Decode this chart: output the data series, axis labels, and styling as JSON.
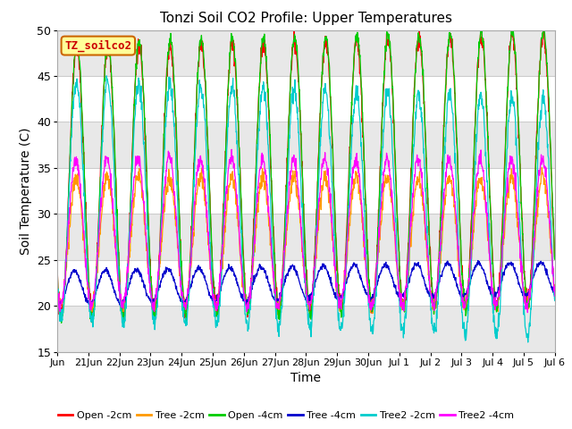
{
  "title": "Tonzi Soil CO2 Profile: Upper Temperatures",
  "ylabel": "Soil Temperature (C)",
  "xlabel": "Time",
  "ylim": [
    15,
    50
  ],
  "yticks": [
    15,
    20,
    25,
    30,
    35,
    40,
    45,
    50
  ],
  "legend_label": "TZ_soilco2",
  "legend_box_color": "#ffff99",
  "legend_box_edge": "#cc6600",
  "series": [
    {
      "label": "Open -2cm",
      "color": "#ff0000"
    },
    {
      "label": "Tree -2cm",
      "color": "#ff9900"
    },
    {
      "label": "Open -4cm",
      "color": "#00cc00"
    },
    {
      "label": "Tree -4cm",
      "color": "#0000cc"
    },
    {
      "label": "Tree2 -2cm",
      "color": "#00cccc"
    },
    {
      "label": "Tree2 -4cm",
      "color": "#ff00ff"
    }
  ],
  "background_color": "#ffffff",
  "grid_color": "#cccccc",
  "band_color": "#e8e8e8",
  "n_days": 16,
  "pts_per_day": 96,
  "tick_labels": [
    "Jun",
    "21Jun",
    "22Jun",
    "23Jun",
    "24Jun",
    "25Jun",
    "26Jun",
    "27Jun",
    "28Jun",
    "29Jun",
    "30Jun",
    "Jul 1",
    "Jul 2",
    "Jul 3",
    "Jul 4",
    "Jul 5",
    "Jul 6"
  ]
}
